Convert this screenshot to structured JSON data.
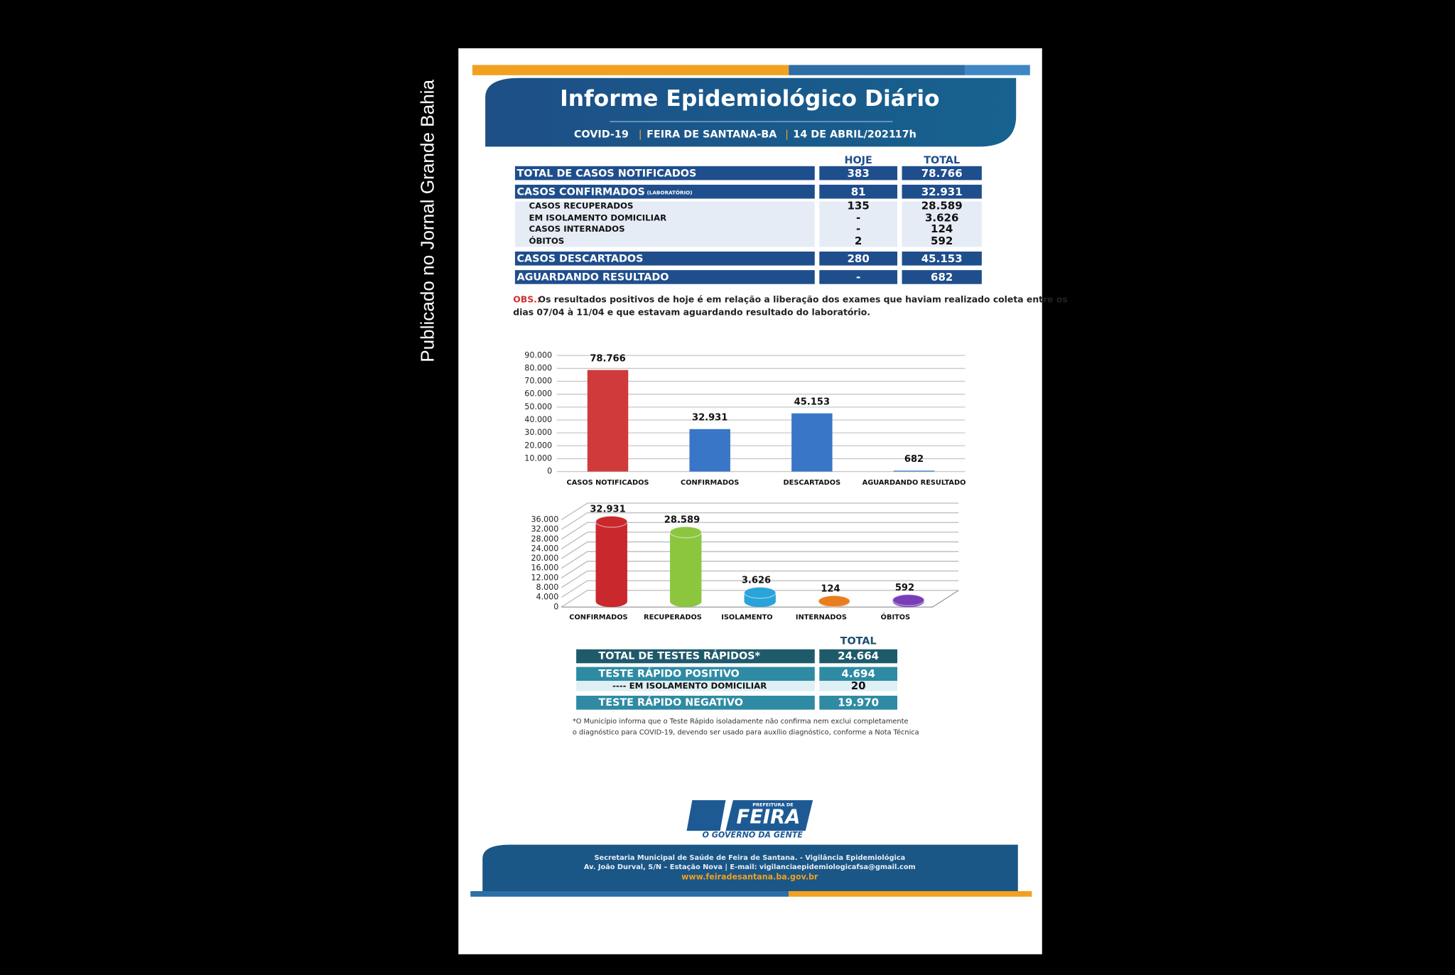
{
  "side_caption": "Publicado no Jornal Grande Bahia",
  "header": {
    "title": "Informe Epidemiológico Diário",
    "subtitle": [
      "COVID-19",
      "FEIRA DE SANTANA-BA",
      "14 DE ABRIL/2021",
      "17h"
    ]
  },
  "cases_table": {
    "columns": [
      "HOJE",
      "TOTAL"
    ],
    "rows": [
      {
        "label": "TOTAL DE CASOS NOTIFICADOS",
        "hoje": "383",
        "total": "78.766"
      },
      {
        "label": "CASOS CONFIRMADOS",
        "note": "(LABORATÓRIO)",
        "hoje": "81",
        "total": "32.931"
      },
      {
        "label": "CASOS RECUPERADOS",
        "hoje": "135",
        "total": "28.589"
      },
      {
        "label": "EM ISOLAMENTO DOMICILIAR",
        "hoje": "-",
        "total": "3.626"
      },
      {
        "label": "CASOS INTERNADOS",
        "hoje": "-",
        "total": "124"
      },
      {
        "label": "ÓBITOS",
        "hoje": "2",
        "total": "592"
      },
      {
        "label": "CASOS DESCARTADOS",
        "hoje": "280",
        "total": "45.153"
      },
      {
        "label": "AGUARDANDO RESULTADO",
        "hoje": "-",
        "total": "682"
      }
    ]
  },
  "obs": {
    "label": "OBS.:",
    "lines": [
      "Os resultados positivos de hoje é em relação a liberação dos exames que haviam realizado coleta entre os",
      "dias 07/04 à 11/04 e que estavam aguardando resultado do laboratório."
    ]
  },
  "charts": [
    {
      "type": "bar",
      "categories": [
        "CASOS NOTIFICADOS",
        "CONFIRMADOS",
        "DESCARTADOS",
        "AGUARDANDO RESULTADO"
      ],
      "values": [
        78766,
        32931,
        45153,
        682
      ],
      "value_labels": [
        "78.766",
        "32.931",
        "45.153",
        "682"
      ],
      "colors": [
        "#d03a3a",
        "#3a76c8",
        "#3a76c8",
        "#3a76c8"
      ],
      "ylim": [
        0,
        90000
      ],
      "yticks": [
        0,
        {
          "value": 10000,
          "label": "10.000"
        },
        {
          "value": 20000,
          "label": "20.000"
        },
        {
          "value": 30000,
          "label": "30.000"
        },
        {
          "value": 40000,
          "label": "40.000"
        },
        {
          "value": 50000,
          "label": "50.000"
        },
        {
          "value": 60000,
          "label": "60.000"
        },
        {
          "value": 70000,
          "label": "70.000"
        },
        {
          "value": 80000,
          "label": "80.000"
        },
        {
          "value": 90000,
          "label": "90.000"
        }
      ],
      "grid": true
    },
    {
      "type": "bar3d",
      "categories": [
        "CONFIRMADOS",
        "RECUPERADOS",
        "ISOLAMENTO",
        "INTERNADOS",
        "ÓBITOS"
      ],
      "values": [
        32931,
        28589,
        3626,
        124,
        592
      ],
      "value_labels": [
        "32.931",
        "28.589",
        "3.626",
        "124",
        "592"
      ],
      "colors": [
        "#c9282d",
        "#8cc63f",
        "#2aa3da",
        "#e87e1e",
        "#7a3db8"
      ],
      "ylim": [
        0,
        36000
      ],
      "yticks": [
        0,
        {
          "value": 4000,
          "label": "4.000"
        },
        {
          "value": 8000,
          "label": "8.000"
        },
        {
          "value": 12000,
          "label": "12.000"
        },
        {
          "value": 16000,
          "label": "16.000"
        },
        {
          "value": 20000,
          "label": "20.000"
        },
        {
          "value": 24000,
          "label": "24.000"
        },
        {
          "value": 28000,
          "label": "28.000"
        },
        {
          "value": 32000,
          "label": "32.000"
        },
        {
          "value": 36000,
          "label": "36.000"
        }
      ],
      "grid": true
    }
  ],
  "rapid_table": {
    "column": "TOTAL",
    "rows": [
      {
        "label": "TOTAL DE TESTES RÁPIDOS*",
        "value": "24.664"
      },
      {
        "label": "TESTE RÁPIDO POSITIVO",
        "value": "4.694"
      },
      {
        "label": "---- EM ISOLAMENTO DOMICILIAR",
        "value": "20"
      },
      {
        "label": "TESTE RÁPIDO NEGATIVO",
        "value": "19.970"
      }
    ]
  },
  "footnote": [
    "*O Município informa  que o Teste Rápido isoladamente não confirma nem exclui completamente",
    "o diagnóstico para COVID-19, devendo ser usado para auxílio diagnóstico, conforme a Nota Técnica"
  ],
  "logo": {
    "top": "PREFEITURA DE",
    "name": "FEIRA",
    "slogan": "O GOVERNO DA GENTE"
  },
  "footer": [
    "Secretaria Municipal de Saúde de Feira de Santana. - Vigilância Epidemiológica",
    "Av. João Durval, S/N – Estação Nova | E-mail: vigilanciaepidemiologicafsa@gmail.com",
    "www.feiradesantana.ba.gov.br"
  ]
}
